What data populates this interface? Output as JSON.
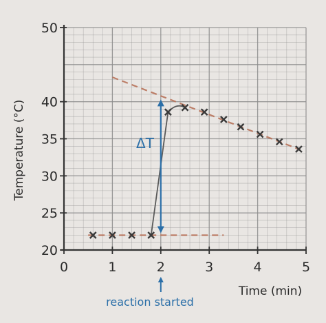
{
  "chart_data": {
    "type": "line",
    "xlabel": "Time (min)",
    "ylabel": "Temperature (°C)",
    "xlim": [
      0,
      5
    ],
    "ylim": [
      20,
      50
    ],
    "x_ticks": [
      "0",
      "1",
      "2",
      "3",
      "4",
      "5"
    ],
    "y_ticks": [
      "20",
      "25",
      "30",
      "35",
      "40",
      "50"
    ],
    "grid": true,
    "series": [
      {
        "points": [
          {
            "x": 0.6,
            "y": 22
          },
          {
            "x": 1.0,
            "y": 22
          },
          {
            "x": 1.4,
            "y": 22
          },
          {
            "x": 1.8,
            "y": 22
          },
          {
            "x": 2.15,
            "y": 38.6
          },
          {
            "x": 2.5,
            "y": 39.2
          },
          {
            "x": 2.9,
            "y": 38.6
          },
          {
            "x": 3.3,
            "y": 37.6
          },
          {
            "x": 3.65,
            "y": 36.6
          },
          {
            "x": 4.05,
            "y": 35.6
          },
          {
            "x": 4.45,
            "y": 34.6
          },
          {
            "x": 4.85,
            "y": 33.6
          }
        ]
      }
    ],
    "extrapolation_lines": [
      {
        "x": [
          1.0,
          4.85
        ],
        "y": [
          43.3,
          33.6
        ],
        "color": "#b8735a"
      },
      {
        "x": [
          0.5,
          3.3
        ],
        "y": [
          22,
          22
        ],
        "color": "#b8735a"
      }
    ],
    "annotations": {
      "delta_label": "ΔT",
      "delta_x": 2.0,
      "delta_y": [
        22,
        40.3
      ],
      "reaction_label": "reaction started",
      "reaction_x": 2.0
    },
    "colors": {
      "grid": "#8c8c8c",
      "axes": "#333333",
      "marker": "#3a3a3a",
      "curve": "#5a5a5a",
      "annotation": "#2b6fa8"
    }
  }
}
